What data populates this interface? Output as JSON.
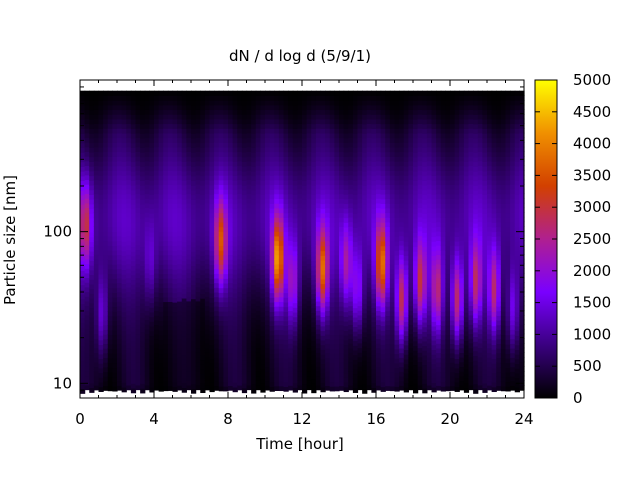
{
  "chart_data": {
    "type": "heatmap",
    "title": "dN / d log d (5/9/1)",
    "xlabel": "Time [hour]",
    "ylabel": "Particle size [nm]",
    "xlim": [
      0,
      24
    ],
    "ylim": [
      8,
      1000
    ],
    "ylog": true,
    "data_ymax": 850,
    "x_ticks": [
      "0",
      "4",
      "8",
      "12",
      "16",
      "20",
      "24"
    ],
    "x_tick_values": [
      0,
      4,
      8,
      12,
      16,
      20,
      24
    ],
    "y_ticks": [
      "10",
      "100"
    ],
    "y_tick_values": [
      10,
      100
    ],
    "colorbar": {
      "min": 0,
      "max": 5000,
      "ticks": [
        "0",
        "500",
        "1000",
        "1500",
        "2000",
        "2500",
        "3000",
        "3500",
        "4000",
        "4500",
        "5000"
      ],
      "tick_values": [
        0,
        500,
        1000,
        1500,
        2000,
        2500,
        3000,
        3500,
        4000,
        4500,
        5000
      ],
      "colormap": [
        "#000000",
        "#3a0080",
        "#7a00ff",
        "#b02090",
        "#d24000",
        "#f09000",
        "#ffff00"
      ]
    },
    "events": [
      {
        "t": 0.3,
        "d": 110,
        "amp": 1900
      },
      {
        "t": 1.2,
        "d": 28,
        "amp": 1200
      },
      {
        "t": 3.8,
        "d": 60,
        "amp": 700
      },
      {
        "t": 7.6,
        "d": 85,
        "amp": 2400
      },
      {
        "t": 10.7,
        "d": 65,
        "amp": 3300
      },
      {
        "t": 11.5,
        "d": 45,
        "amp": 1600
      },
      {
        "t": 13.1,
        "d": 55,
        "amp": 2900
      },
      {
        "t": 14.4,
        "d": 60,
        "amp": 1600
      },
      {
        "t": 15.0,
        "d": 40,
        "amp": 1500
      },
      {
        "t": 16.3,
        "d": 60,
        "amp": 2900
      },
      {
        "t": 17.4,
        "d": 35,
        "amp": 2500
      },
      {
        "t": 18.4,
        "d": 45,
        "amp": 2300
      },
      {
        "t": 19.3,
        "d": 40,
        "amp": 2000
      },
      {
        "t": 20.4,
        "d": 35,
        "amp": 2400
      },
      {
        "t": 21.4,
        "d": 45,
        "amp": 2000
      },
      {
        "t": 22.4,
        "d": 40,
        "amp": 2100
      },
      {
        "t": 23.4,
        "d": 30,
        "amp": 1300
      }
    ]
  }
}
